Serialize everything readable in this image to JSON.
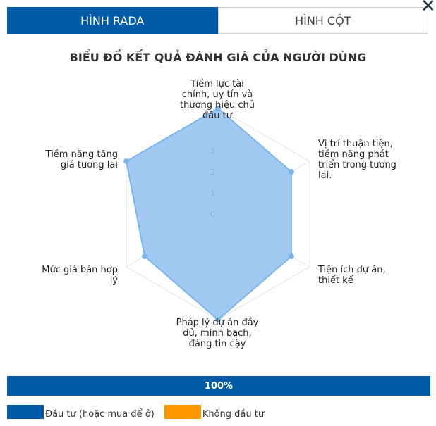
{
  "tabs": [
    {
      "label": "HÌNH RADA",
      "active": true
    },
    {
      "label": "HÌNH CỘT",
      "active": false
    }
  ],
  "close_icon": "close-icon",
  "chart_data": {
    "type": "radar",
    "title": "BIỂU ĐỒ KẾT QUẢ ĐÁNH GIÁ CỦA NGƯỜI DÙNG",
    "categories": [
      "Tiềm lực tài chính, uy tín và thương hiệu chủ đầu tư",
      "Vị trí thuận tiện, tiềm năng phát triển trong tương lai.",
      "Tiện ích dự án, thiết kế",
      "Pháp lý dự án đầy đủ, minh bạch, đáng tin cậy",
      "Mức giá bán hợp lý",
      "Tiềm năng tăng giá tương lai"
    ],
    "series": [
      {
        "name": "Đầu tư (hoặc mua để ở)",
        "values": [
          5,
          4,
          4,
          5,
          4,
          5
        ]
      }
    ],
    "range": [
      0,
      5
    ],
    "tick_labels": [
      "0",
      "1",
      "2",
      "3"
    ],
    "colors": {
      "fill": "#90c0f0",
      "stroke": "#7cb5ec",
      "grid": "#e2e2e2"
    }
  },
  "progress": {
    "label": "100%",
    "value": 1.0
  },
  "legend": [
    {
      "label": "Đầu tư (hoặc mua để ở)",
      "color": "#005ba6"
    },
    {
      "label": "Không đầu tư",
      "color": "#ff9800"
    }
  ]
}
